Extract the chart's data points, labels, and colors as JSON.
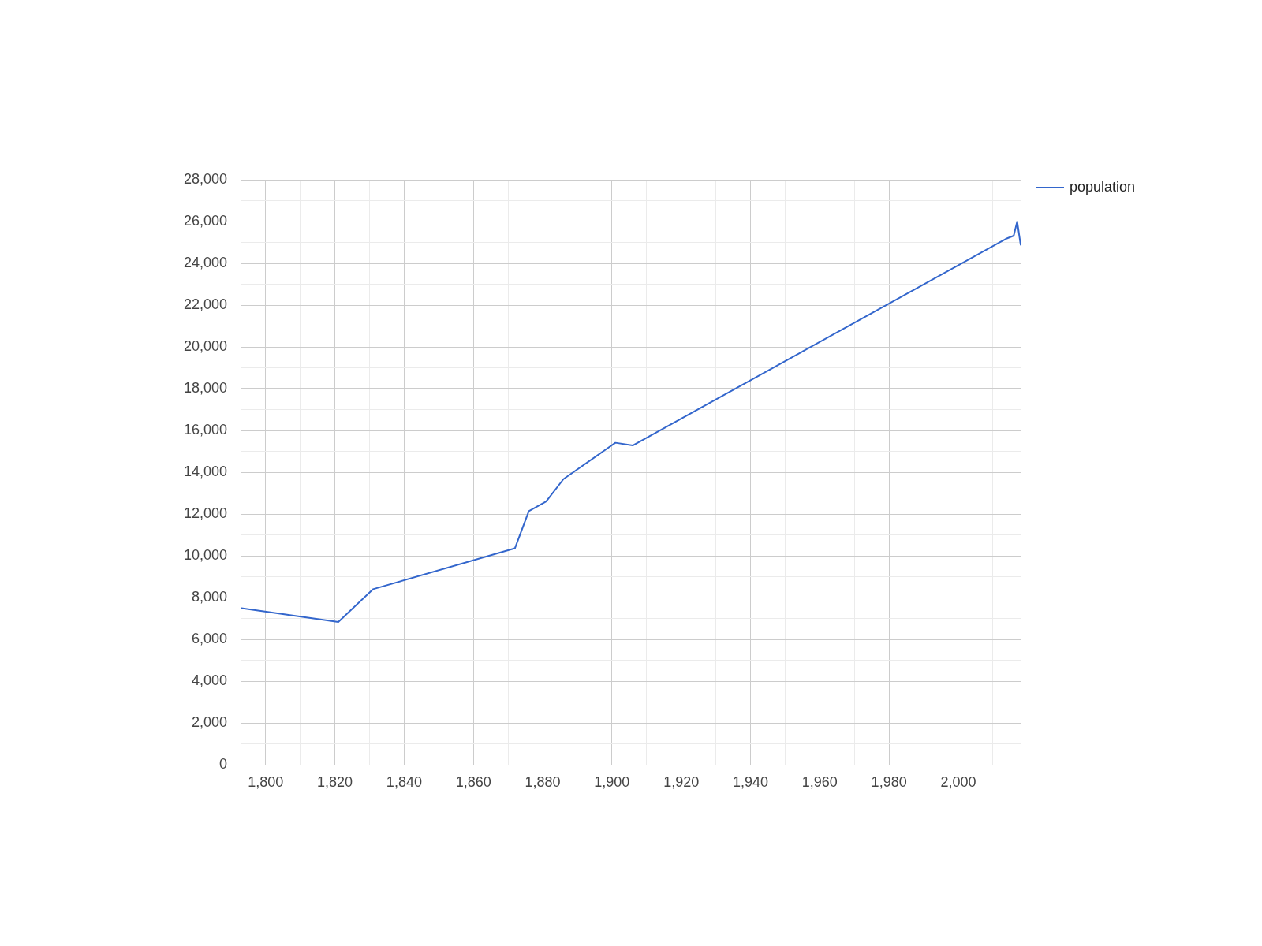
{
  "chart_data": {
    "type": "line",
    "x": [
      1793,
      1821,
      1831,
      1872,
      1876,
      1881,
      1886,
      1901,
      1906,
      2014,
      2016,
      2017,
      2018
    ],
    "series": [
      {
        "name": "population",
        "color": "#3366cc",
        "values": [
          7490,
          6830,
          8400,
          10360,
          12140,
          12600,
          13670,
          15410,
          15280,
          25190,
          25320,
          26000,
          24890
        ]
      }
    ],
    "xlim": [
      1793,
      2018
    ],
    "ylim": [
      0,
      28000
    ],
    "xticks": [
      {
        "value": 1800,
        "label": "1,800"
      },
      {
        "value": 1810,
        "label": null
      },
      {
        "value": 1820,
        "label": "1,820"
      },
      {
        "value": 1830,
        "label": null
      },
      {
        "value": 1840,
        "label": "1,840"
      },
      {
        "value": 1850,
        "label": null
      },
      {
        "value": 1860,
        "label": "1,860"
      },
      {
        "value": 1870,
        "label": null
      },
      {
        "value": 1880,
        "label": "1,880"
      },
      {
        "value": 1890,
        "label": null
      },
      {
        "value": 1900,
        "label": "1,900"
      },
      {
        "value": 1910,
        "label": null
      },
      {
        "value": 1920,
        "label": "1,920"
      },
      {
        "value": 1930,
        "label": null
      },
      {
        "value": 1940,
        "label": "1,940"
      },
      {
        "value": 1950,
        "label": null
      },
      {
        "value": 1960,
        "label": "1,960"
      },
      {
        "value": 1970,
        "label": null
      },
      {
        "value": 1980,
        "label": "1,980"
      },
      {
        "value": 1990,
        "label": null
      },
      {
        "value": 2000,
        "label": "2,000"
      },
      {
        "value": 2010,
        "label": null
      }
    ],
    "yticks": [
      0,
      {
        "value": 1000,
        "label": null
      },
      {
        "value": 2000,
        "label": "2,000"
      },
      {
        "value": 3000,
        "label": null
      },
      {
        "value": 4000,
        "label": "4,000"
      },
      {
        "value": 5000,
        "label": null
      },
      {
        "value": 6000,
        "label": "6,000"
      },
      {
        "value": 7000,
        "label": null
      },
      {
        "value": 8000,
        "label": "8,000"
      },
      {
        "value": 9000,
        "label": null
      },
      {
        "value": 10000,
        "label": "10,000"
      },
      {
        "value": 11000,
        "label": null
      },
      {
        "value": 12000,
        "label": "12,000"
      },
      {
        "value": 13000,
        "label": null
      },
      {
        "value": 14000,
        "label": "14,000"
      },
      {
        "value": 15000,
        "label": null
      },
      {
        "value": 16000,
        "label": "16,000"
      },
      {
        "value": 17000,
        "label": null
      },
      {
        "value": 18000,
        "label": "18,000"
      },
      {
        "value": 19000,
        "label": null
      },
      {
        "value": 20000,
        "label": "20,000"
      },
      {
        "value": 21000,
        "label": null
      },
      {
        "value": 22000,
        "label": "22,000"
      },
      {
        "value": 23000,
        "label": null
      },
      {
        "value": 24000,
        "label": "24,000"
      },
      {
        "value": 25000,
        "label": null
      },
      {
        "value": 26000,
        "label": "26,000"
      },
      {
        "value": 27000,
        "label": null
      },
      {
        "value": 28000,
        "label": "28,000"
      }
    ],
    "grid": true,
    "legend": "right",
    "marker": "none"
  }
}
